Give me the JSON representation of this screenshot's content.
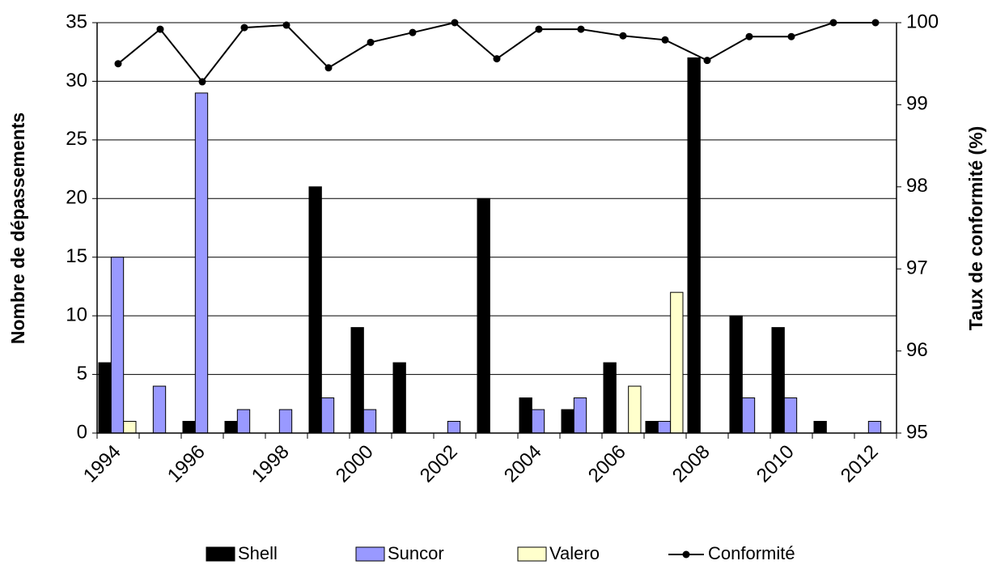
{
  "chart_data": {
    "type": "bar",
    "y_label": "Nombre de dépassements",
    "y2_label": "Taux de conformité (%)",
    "categories": [
      1994,
      null,
      1996,
      null,
      1998,
      null,
      2000,
      null,
      2002,
      null,
      2004,
      null,
      2006,
      null,
      2008,
      null,
      2010,
      null,
      2012
    ],
    "series": [
      {
        "name": "Shell",
        "color": "#000000",
        "values": [
          6,
          0,
          1,
          1,
          0,
          21,
          9,
          6,
          0,
          20,
          3,
          2,
          6,
          1,
          32,
          10,
          9,
          1,
          0
        ]
      },
      {
        "name": "Suncor",
        "color": "#9999ff",
        "values": [
          15,
          4,
          29,
          2,
          2,
          3,
          2,
          0,
          1,
          0,
          2,
          3,
          0,
          1,
          0,
          3,
          3,
          0,
          1
        ]
      },
      {
        "name": "Valero",
        "color": "#ffffcc",
        "values": [
          1,
          0,
          0,
          0,
          0,
          0,
          0,
          0,
          0,
          0,
          0,
          0,
          4,
          12,
          0,
          0,
          0,
          0,
          0
        ]
      },
      {
        "name": "Conformité",
        "type": "line",
        "axis": "y2",
        "color": "#000000",
        "values": [
          99.5,
          99.92,
          99.28,
          99.94,
          99.97,
          99.45,
          99.76,
          99.88,
          100,
          99.56,
          99.92,
          99.92,
          99.84,
          99.79,
          99.54,
          99.83,
          99.83,
          100,
          100
        ]
      }
    ],
    "ylim": [
      0,
      35
    ],
    "yticks": [
      0,
      5,
      10,
      15,
      20,
      25,
      30,
      35
    ],
    "y2lim": [
      95,
      100
    ],
    "y2ticks": [
      95,
      96,
      97,
      98,
      99,
      100
    ],
    "grid": true,
    "legend": "bottom"
  }
}
